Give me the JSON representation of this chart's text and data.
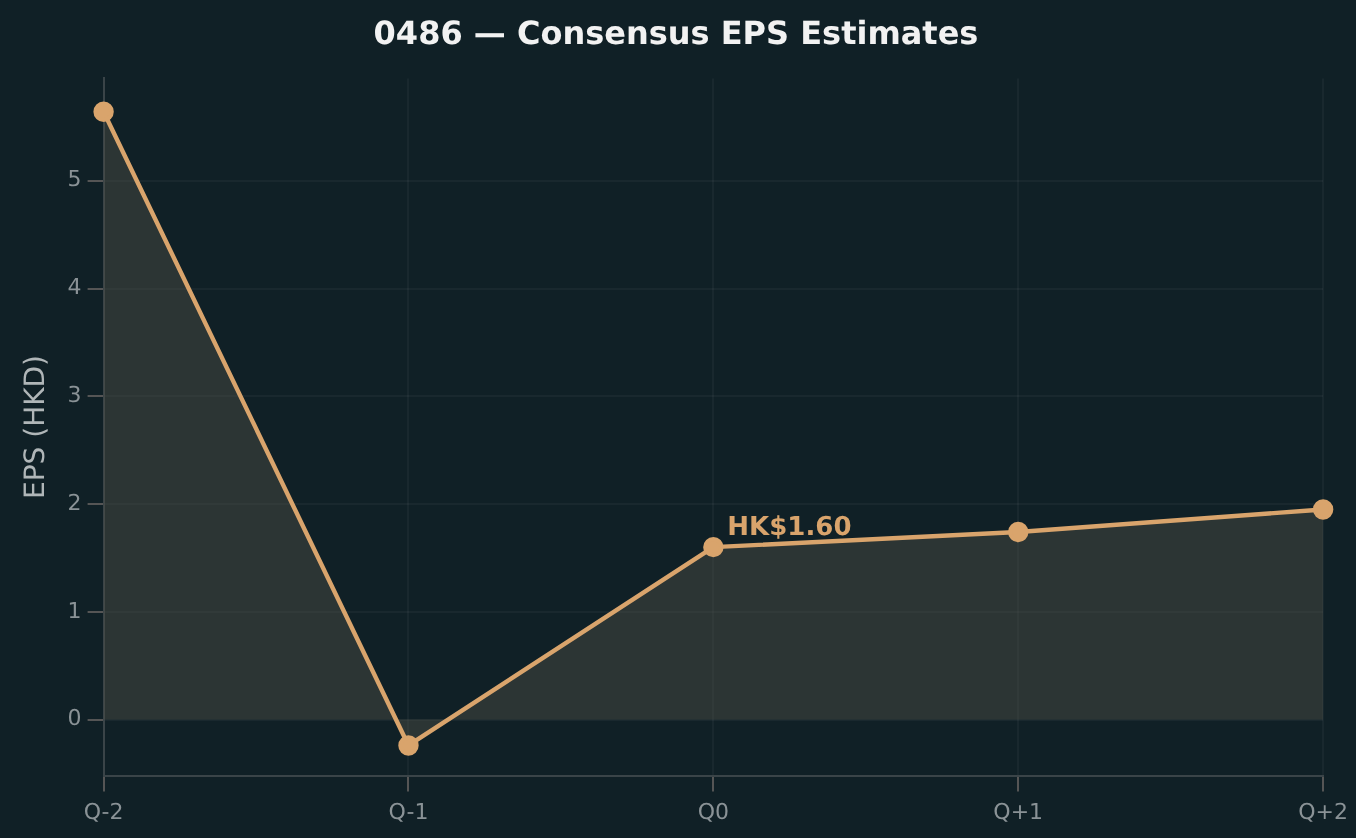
{
  "chart_data": {
    "type": "area",
    "title": "0486 — Consensus EPS Estimates",
    "ylabel": "EPS (HKD)",
    "categories": [
      "Q-2",
      "Q-1",
      "Q0",
      "Q+1",
      "Q+2"
    ],
    "series": [
      {
        "color": "#d9a46c",
        "values": [
          5.64,
          -0.24,
          1.6,
          1.74,
          1.95
        ]
      }
    ],
    "ylim": [
      -0.52,
      5.95
    ],
    "yticks": [
      0,
      1,
      2,
      3,
      4,
      5
    ],
    "grid": true,
    "legend": false,
    "marker": "circle",
    "line_style": "solid",
    "annotations": [
      {
        "text": "HK$1.60",
        "x": "Q0",
        "y": 1.6
      }
    ]
  }
}
